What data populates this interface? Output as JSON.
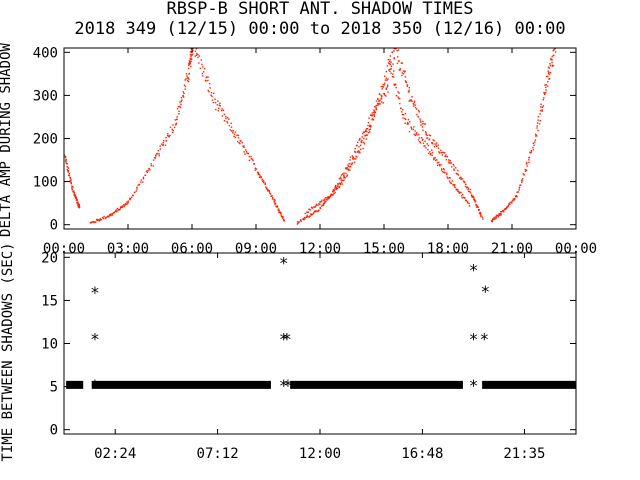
{
  "title_line1": "RBSP-B SHORT ANT. SHADOW TIMES",
  "title_line2": "2018 349 (12/15) 00:00 to 2018 350 (12/16) 00:00",
  "chart_data": [
    {
      "type": "scatter",
      "ylabel": "DELTA AMP DURING SHADOW",
      "xlim_hours": [
        0,
        24
      ],
      "ylim": [
        -10,
        410
      ],
      "grid": false,
      "point_color": "#ff2000",
      "x_tick_labels": [
        "00:00",
        "03:00",
        "06:00",
        "09:00",
        "12:00",
        "15:00",
        "18:00",
        "21:00",
        "00:00"
      ],
      "x_tick_hours": [
        0,
        3,
        6,
        9,
        12,
        15,
        18,
        21,
        24
      ],
      "y_ticks": [
        0,
        100,
        200,
        300,
        400
      ],
      "point_groups": [
        {
          "x": [
            0.0,
            0.4,
            0.7
          ],
          "y": [
            160,
            80,
            40
          ]
        },
        {
          "x": [
            1.2,
            2.2,
            3.0,
            4.2,
            5.2,
            5.8,
            6.0
          ],
          "y": [
            5,
            25,
            55,
            150,
            240,
            350,
            410
          ]
        },
        {
          "x": [
            6.1,
            7.0,
            8.0,
            9.0,
            9.8,
            10.3
          ],
          "y": [
            410,
            290,
            210,
            130,
            60,
            10
          ]
        },
        {
          "x": [
            10.9,
            12.0,
            13.0,
            14.0,
            14.8,
            15.5
          ],
          "y": [
            5,
            40,
            100,
            190,
            300,
            410
          ]
        },
        {
          "x": [
            11.3,
            12.5,
            13.4,
            14.3,
            15.2
          ],
          "y": [
            30,
            70,
            150,
            240,
            320
          ]
        },
        {
          "x": [
            15.5,
            16.2,
            17.0,
            18.0,
            19.0,
            19.6
          ],
          "y": [
            410,
            300,
            210,
            150,
            80,
            15
          ]
        },
        {
          "x": [
            15.2,
            16.0,
            17.0,
            18.0,
            19.0
          ],
          "y": [
            380,
            240,
            180,
            110,
            45
          ]
        },
        {
          "x": [
            20.0,
            20.5,
            21.2,
            22.0,
            22.6,
            23.0
          ],
          "y": [
            10,
            30,
            70,
            190,
            330,
            410
          ]
        }
      ]
    },
    {
      "type": "scatter",
      "ylabel": "TIME BETWEEN SHADOWS (SEC)",
      "xlim_hours": [
        0,
        24
      ],
      "ylim": [
        -0.5,
        20.5
      ],
      "grid": false,
      "marker": "*",
      "x_tick_labels": [
        "02:24",
        "07:12",
        "12:00",
        "16:48",
        "21:35"
      ],
      "x_tick_hours": [
        2.4,
        7.2,
        12.0,
        16.8,
        21.583
      ],
      "y_ticks": [
        0,
        5,
        10,
        15,
        20
      ],
      "baseline_segments": [
        [
          0.1,
          0.9
        ],
        [
          1.3,
          9.7
        ],
        [
          10.6,
          18.7
        ],
        [
          19.6,
          24
        ]
      ],
      "baseline_value": 5.2,
      "points": [
        {
          "x": 1.45,
          "y": 16.0
        },
        {
          "x": 1.45,
          "y": 10.6
        },
        {
          "x": 1.45,
          "y": 5.2
        },
        {
          "x": 10.3,
          "y": 19.4
        },
        {
          "x": 10.3,
          "y": 10.6
        },
        {
          "x": 10.45,
          "y": 10.6
        },
        {
          "x": 10.3,
          "y": 5.2
        },
        {
          "x": 10.5,
          "y": 5.2
        },
        {
          "x": 19.2,
          "y": 18.6
        },
        {
          "x": 19.2,
          "y": 10.6
        },
        {
          "x": 19.7,
          "y": 10.6
        },
        {
          "x": 19.75,
          "y": 16.1
        },
        {
          "x": 19.2,
          "y": 5.2
        }
      ]
    }
  ]
}
